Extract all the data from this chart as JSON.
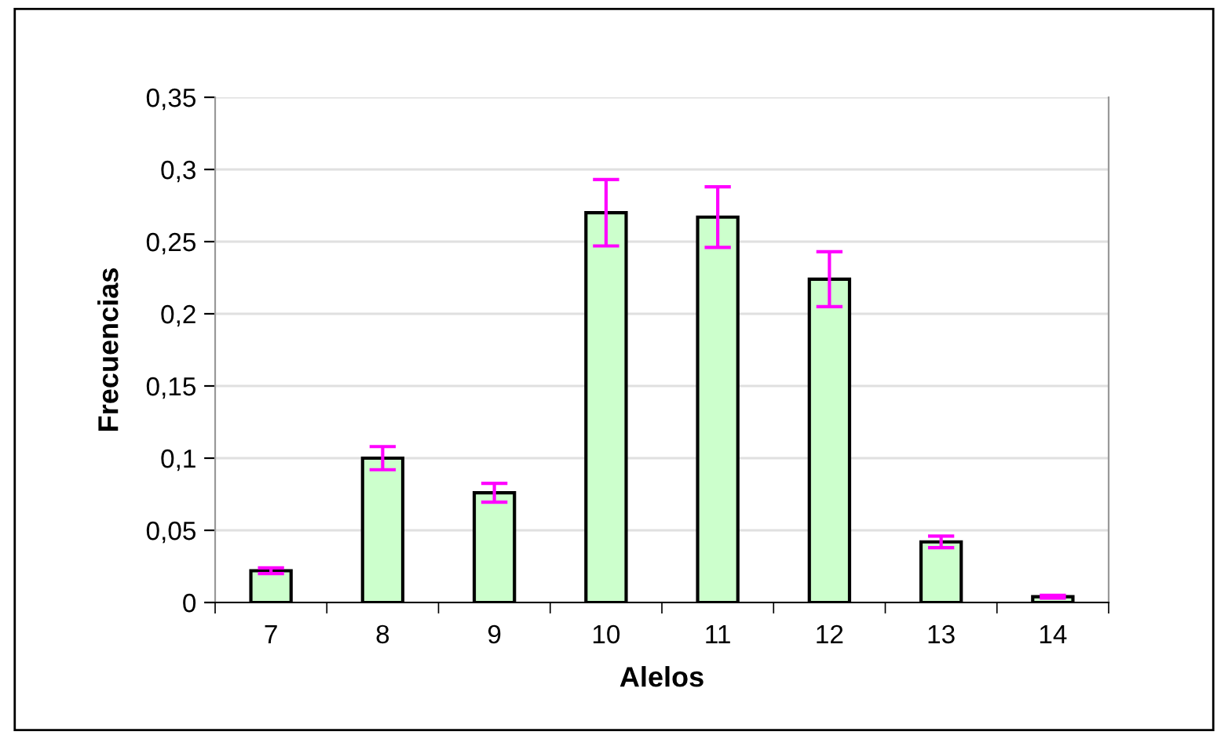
{
  "chart_data": {
    "type": "bar",
    "xlabel": "Alelos",
    "ylabel": "Frecuencias",
    "categories": [
      "7",
      "8",
      "9",
      "10",
      "11",
      "12",
      "13",
      "14"
    ],
    "values": [
      0.022,
      0.1,
      0.076,
      0.27,
      0.267,
      0.224,
      0.042,
      0.004
    ],
    "errors": [
      0.002,
      0.008,
      0.0065,
      0.023,
      0.021,
      0.019,
      0.004,
      0.001
    ],
    "color": "#ccffcc",
    "ylim": [
      0,
      0.35
    ],
    "yticks": [
      0,
      {
        "value": 0.05,
        "label": "0,05"
      },
      {
        "value": 0.1,
        "label": "0,1"
      },
      {
        "value": 0.15,
        "label": "0,15"
      },
      {
        "value": 0.2,
        "label": "0,2"
      },
      {
        "value": 0.25,
        "label": "0,25"
      },
      {
        "value": 0.3,
        "label": "0,3"
      },
      {
        "value": 0.35,
        "label": "0,35"
      }
    ],
    "grid": "y"
  }
}
